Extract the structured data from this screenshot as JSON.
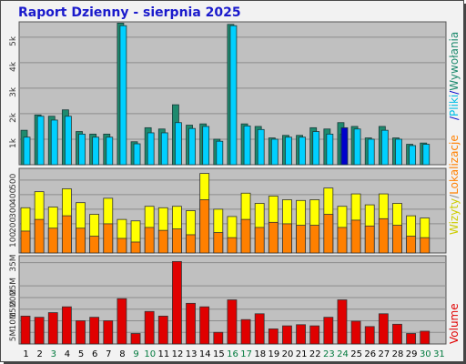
{
  "title": "Raport Dzienny - sierpnia 2025",
  "colors": {
    "panel_bg": "#c0c0c0",
    "grid": "#8c8c8c",
    "wizyty": "#1e8a6e",
    "pliki": "#00d0ff",
    "strony": "#0000cc",
    "wizyty_top": "#ffff00",
    "lokalizacje": "#ff8000",
    "volume": "#e00000",
    "weekend_label": "#007a3d",
    "weekday_label": "#000000"
  },
  "chart_data": [
    {
      "type": "bar",
      "panel": "hits",
      "yticks": [
        "1k",
        "2k",
        "3k",
        "4k",
        "5k"
      ],
      "ylim": [
        0,
        5600
      ],
      "x": [
        1,
        2,
        3,
        4,
        5,
        6,
        7,
        8,
        9,
        10,
        11,
        12,
        13,
        14,
        15,
        16,
        17,
        18,
        19,
        20,
        21,
        22,
        23,
        24,
        25,
        26,
        27,
        28,
        29,
        30,
        31
      ],
      "series": [
        {
          "name": "Wywołania",
          "values": [
            1350,
            1950,
            1900,
            2150,
            1300,
            1200,
            1200,
            5550,
            900,
            1450,
            1400,
            2350,
            1550,
            1600,
            1000,
            5500,
            1600,
            1500,
            1050,
            1150,
            1150,
            1450,
            1400,
            1650,
            1500,
            1050,
            1500,
            1050,
            800,
            850,
            0
          ]
        },
        {
          "name": "Pliki",
          "values": [
            1080,
            1900,
            1750,
            1900,
            1200,
            1080,
            1080,
            5450,
            820,
            1250,
            1250,
            1650,
            1420,
            1500,
            920,
            5450,
            1520,
            1380,
            1000,
            1080,
            1080,
            1300,
            1200,
            1200,
            1400,
            1000,
            1350,
            1000,
            750,
            800,
            0
          ]
        },
        {
          "name": "Strony",
          "values": [
            0,
            0,
            0,
            0,
            0,
            0,
            0,
            0,
            0,
            0,
            0,
            0,
            0,
            0,
            0,
            0,
            0,
            0,
            0,
            0,
            0,
            0,
            0,
            1450,
            0,
            0,
            0,
            0,
            0,
            0,
            0
          ]
        }
      ]
    },
    {
      "type": "bar",
      "panel": "visits",
      "yticks": [
        "100",
        "200",
        "300",
        "400",
        "500"
      ],
      "ylim": [
        0,
        580
      ],
      "x": [
        1,
        2,
        3,
        4,
        5,
        6,
        7,
        8,
        9,
        10,
        11,
        12,
        13,
        14,
        15,
        16,
        17,
        18,
        19,
        20,
        21,
        22,
        23,
        24,
        25,
        26,
        27,
        28,
        29,
        30,
        31
      ],
      "series": [
        {
          "name": "Wizyty",
          "values": [
            310,
            420,
            315,
            440,
            345,
            265,
            375,
            230,
            220,
            320,
            310,
            320,
            290,
            545,
            300,
            250,
            410,
            340,
            390,
            365,
            360,
            365,
            445,
            320,
            405,
            330,
            405,
            340,
            255,
            240,
            0
          ]
        },
        {
          "name": "Lokalizacje",
          "values": [
            150,
            230,
            170,
            255,
            170,
            115,
            200,
            100,
            75,
            175,
            155,
            165,
            125,
            365,
            140,
            105,
            230,
            175,
            210,
            200,
            190,
            190,
            265,
            175,
            225,
            185,
            235,
            190,
            115,
            105,
            0
          ]
        }
      ]
    },
    {
      "type": "bar",
      "panel": "volume",
      "yticks": [
        "5M",
        "10M",
        "15M",
        "20M",
        "25M",
        "35M"
      ],
      "ylim": [
        0,
        38000000
      ],
      "x": [
        1,
        2,
        3,
        4,
        5,
        6,
        7,
        8,
        9,
        10,
        11,
        12,
        13,
        14,
        15,
        16,
        17,
        18,
        19,
        20,
        21,
        22,
        23,
        24,
        25,
        26,
        27,
        28,
        29,
        30,
        31
      ],
      "series": [
        {
          "name": "Volume",
          "values": [
            12000000,
            11500000,
            13500000,
            16000000,
            10000000,
            11500000,
            10000000,
            19500000,
            4500000,
            14000000,
            12000000,
            35500000,
            17500000,
            16000000,
            5000000,
            19000000,
            10500000,
            13000000,
            6500000,
            7800000,
            8300000,
            7800000,
            11500000,
            19000000,
            9800000,
            7500000,
            13000000,
            8500000,
            4500000,
            5500000,
            0
          ]
        }
      ]
    }
  ],
  "day_labels": [
    "1",
    "2",
    "3",
    "4",
    "5",
    "6",
    "7",
    "8",
    "9",
    "10",
    "11",
    "12",
    "13",
    "14",
    "15",
    "16",
    "17",
    "18",
    "19",
    "20",
    "21",
    "22",
    "23",
    "24",
    "25",
    "26",
    "27",
    "28",
    "29",
    "30",
    "31"
  ],
  "weekend_days": [
    3,
    9,
    10,
    16,
    17,
    23,
    24,
    30,
    31
  ],
  "legend_right_top": {
    "part1": "Wywołania",
    "sep1": "/",
    "part2": "Pliki",
    "sep2": "/",
    "part3": "Strony"
  },
  "legend_right_mid": {
    "part1": "Wizyty",
    "sep1": "/",
    "part2": "Lokalizacje"
  },
  "legend_right_bottom": {
    "part1": "Volume"
  }
}
